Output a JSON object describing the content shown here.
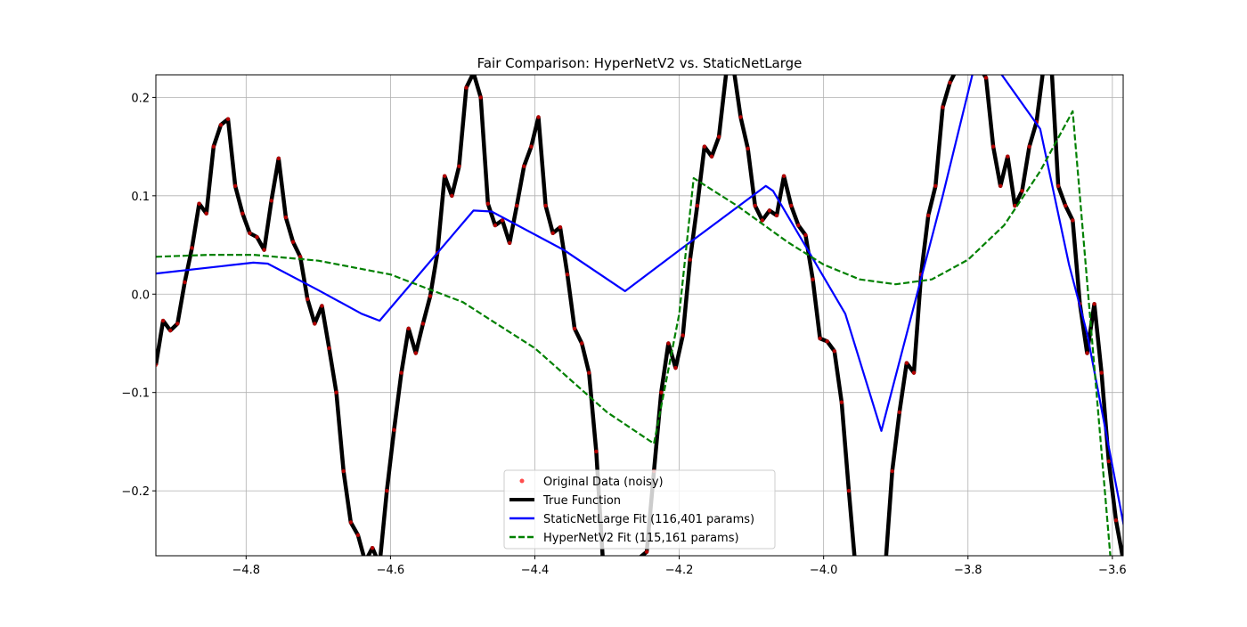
{
  "chart_data": {
    "type": "line",
    "title": "Fair Comparison: HyperNetV2 vs. StaticNetLarge",
    "xlabel": "",
    "ylabel": "",
    "xlim": [
      -4.925,
      -3.585
    ],
    "ylim": [
      -0.266,
      0.223
    ],
    "x_ticks": [
      -4.8,
      -4.6,
      -4.4,
      -4.2,
      -4.0,
      -3.8,
      -3.6
    ],
    "x_tick_labels": [
      "−4.8",
      "−4.6",
      "−4.4",
      "−4.2",
      "−4.0",
      "−3.8",
      "−3.6"
    ],
    "y_ticks": [
      0.2,
      0.1,
      0.0,
      -0.1,
      -0.2
    ],
    "y_tick_labels": [
      "0.2",
      "0.1",
      "0.0",
      "−0.1",
      "−0.2"
    ],
    "grid": true,
    "legend_position": "lower center",
    "series": [
      {
        "name": "Original Data (noisy)",
        "style": "markers",
        "color": "#ff0000",
        "x": [
          -4.925,
          -4.915,
          -4.905,
          -4.895,
          -4.885,
          -4.875,
          -4.865,
          -4.855,
          -4.845,
          -4.835,
          -4.825,
          -4.815,
          -4.805,
          -4.795,
          -4.785,
          -4.775,
          -4.765,
          -4.755,
          -4.745,
          -4.735,
          -4.725,
          -4.715,
          -4.705,
          -4.695,
          -4.685,
          -4.675,
          -4.665,
          -4.655,
          -4.645,
          -4.635,
          -4.625,
          -4.615,
          -4.605,
          -4.595,
          -4.585,
          -4.575,
          -4.565,
          -4.555,
          -4.545,
          -4.535,
          -4.525,
          -4.515,
          -4.505,
          -4.495,
          -4.485,
          -4.475,
          -4.465,
          -4.455,
          -4.445,
          -4.435,
          -4.425,
          -4.415,
          -4.405,
          -4.395,
          -4.385,
          -4.375,
          -4.365,
          -4.355,
          -4.345,
          -4.335,
          -4.325,
          -4.315,
          -4.305,
          -4.295,
          -4.285,
          -4.275,
          -4.265,
          -4.255,
          -4.245,
          -4.235,
          -4.225,
          -4.215,
          -4.205,
          -4.195,
          -4.185,
          -4.175,
          -4.165,
          -4.155,
          -4.145,
          -4.135,
          -4.125,
          -4.115,
          -4.105,
          -4.095,
          -4.085,
          -4.075,
          -4.065,
          -4.055,
          -4.045,
          -4.035,
          -4.025,
          -4.015,
          -4.005,
          -3.995,
          -3.985,
          -3.975,
          -3.965,
          -3.955,
          -3.945,
          -3.935,
          -3.925,
          -3.915,
          -3.905,
          -3.895,
          -3.885,
          -3.875,
          -3.865,
          -3.855,
          -3.845,
          -3.835,
          -3.825,
          -3.815,
          -3.805,
          -3.795,
          -3.785,
          -3.775,
          -3.765,
          -3.755,
          -3.745,
          -3.735,
          -3.725,
          -3.715,
          -3.705,
          -3.695,
          -3.685,
          -3.675,
          -3.665,
          -3.655,
          -3.645,
          -3.635,
          -3.625,
          -3.615,
          -3.605,
          -3.595,
          -3.585
        ],
        "y": [
          -0.072,
          -0.027,
          -0.037,
          -0.03,
          0.012,
          0.047,
          0.092,
          0.082,
          0.15,
          0.172,
          0.178,
          0.11,
          0.082,
          0.062,
          0.058,
          0.045,
          0.095,
          0.138,
          0.078,
          0.053,
          0.038,
          -0.005,
          -0.03,
          -0.012,
          -0.055,
          -0.1,
          -0.18,
          -0.232,
          -0.245,
          -0.272,
          -0.258,
          -0.275,
          -0.2,
          -0.138,
          -0.08,
          -0.035,
          -0.06,
          -0.03,
          -0.002,
          0.042,
          0.12,
          0.1,
          0.13,
          0.21,
          0.225,
          0.2,
          0.092,
          0.07,
          0.075,
          0.052,
          0.09,
          0.13,
          0.15,
          0.18,
          0.09,
          0.062,
          0.068,
          0.02,
          -0.035,
          -0.05,
          -0.08,
          -0.16,
          -0.28,
          -0.27,
          -0.282,
          -0.272,
          -0.275,
          -0.268,
          -0.262,
          -0.18,
          -0.1,
          -0.05,
          -0.075,
          -0.042,
          0.035,
          0.09,
          0.15,
          0.14,
          0.16,
          0.225,
          0.231,
          0.18,
          0.148,
          0.09,
          0.075,
          0.085,
          0.08,
          0.12,
          0.09,
          0.07,
          0.06,
          0.015,
          -0.045,
          -0.048,
          -0.058,
          -0.11,
          -0.2,
          -0.285,
          -0.28,
          -0.283,
          -0.284,
          -0.282,
          -0.18,
          -0.12,
          -0.07,
          -0.08,
          0.02,
          0.08,
          0.11,
          0.19,
          0.215,
          0.23,
          0.24,
          0.235,
          0.232,
          0.22,
          0.15,
          0.11,
          0.14,
          0.09,
          0.105,
          0.15,
          0.175,
          0.233,
          0.24,
          0.11,
          0.09,
          0.075,
          -0.01,
          -0.06,
          -0.01,
          -0.08,
          -0.17,
          -0.23,
          -0.27
        ]
      },
      {
        "name": "True Function",
        "style": "line",
        "color": "#000000",
        "x": [
          -4.925,
          -4.915,
          -4.905,
          -4.895,
          -4.885,
          -4.875,
          -4.865,
          -4.855,
          -4.845,
          -4.835,
          -4.825,
          -4.815,
          -4.805,
          -4.795,
          -4.785,
          -4.775,
          -4.765,
          -4.755,
          -4.745,
          -4.735,
          -4.725,
          -4.715,
          -4.705,
          -4.695,
          -4.685,
          -4.675,
          -4.665,
          -4.655,
          -4.645,
          -4.635,
          -4.625,
          -4.615,
          -4.605,
          -4.595,
          -4.585,
          -4.575,
          -4.565,
          -4.555,
          -4.545,
          -4.535,
          -4.525,
          -4.515,
          -4.505,
          -4.495,
          -4.485,
          -4.475,
          -4.465,
          -4.455,
          -4.445,
          -4.435,
          -4.425,
          -4.415,
          -4.405,
          -4.395,
          -4.385,
          -4.375,
          -4.365,
          -4.355,
          -4.345,
          -4.335,
          -4.325,
          -4.315,
          -4.305,
          -4.295,
          -4.285,
          -4.275,
          -4.265,
          -4.255,
          -4.245,
          -4.235,
          -4.225,
          -4.215,
          -4.205,
          -4.195,
          -4.185,
          -4.175,
          -4.165,
          -4.155,
          -4.145,
          -4.135,
          -4.125,
          -4.115,
          -4.105,
          -4.095,
          -4.085,
          -4.075,
          -4.065,
          -4.055,
          -4.045,
          -4.035,
          -4.025,
          -4.015,
          -4.005,
          -3.995,
          -3.985,
          -3.975,
          -3.965,
          -3.955,
          -3.945,
          -3.935,
          -3.925,
          -3.915,
          -3.905,
          -3.895,
          -3.885,
          -3.875,
          -3.865,
          -3.855,
          -3.845,
          -3.835,
          -3.825,
          -3.815,
          -3.805,
          -3.795,
          -3.785,
          -3.775,
          -3.765,
          -3.755,
          -3.745,
          -3.735,
          -3.725,
          -3.715,
          -3.705,
          -3.695,
          -3.685,
          -3.675,
          -3.665,
          -3.655,
          -3.645,
          -3.635,
          -3.625,
          -3.615,
          -3.605,
          -3.595,
          -3.585
        ],
        "y": [
          -0.072,
          -0.027,
          -0.037,
          -0.03,
          0.012,
          0.047,
          0.092,
          0.082,
          0.15,
          0.172,
          0.178,
          0.11,
          0.082,
          0.062,
          0.058,
          0.045,
          0.095,
          0.138,
          0.078,
          0.053,
          0.038,
          -0.005,
          -0.03,
          -0.012,
          -0.055,
          -0.1,
          -0.18,
          -0.232,
          -0.245,
          -0.272,
          -0.258,
          -0.275,
          -0.2,
          -0.138,
          -0.08,
          -0.035,
          -0.06,
          -0.03,
          -0.002,
          0.042,
          0.12,
          0.1,
          0.13,
          0.21,
          0.225,
          0.2,
          0.092,
          0.07,
          0.075,
          0.052,
          0.09,
          0.13,
          0.15,
          0.18,
          0.09,
          0.062,
          0.068,
          0.02,
          -0.035,
          -0.05,
          -0.08,
          -0.16,
          -0.28,
          -0.27,
          -0.282,
          -0.272,
          -0.275,
          -0.268,
          -0.262,
          -0.18,
          -0.1,
          -0.05,
          -0.075,
          -0.042,
          0.035,
          0.09,
          0.15,
          0.14,
          0.16,
          0.225,
          0.231,
          0.18,
          0.148,
          0.09,
          0.075,
          0.085,
          0.08,
          0.12,
          0.09,
          0.07,
          0.06,
          0.015,
          -0.045,
          -0.048,
          -0.058,
          -0.11,
          -0.2,
          -0.285,
          -0.28,
          -0.283,
          -0.284,
          -0.282,
          -0.18,
          -0.12,
          -0.07,
          -0.08,
          0.02,
          0.08,
          0.11,
          0.19,
          0.215,
          0.23,
          0.24,
          0.235,
          0.232,
          0.22,
          0.15,
          0.11,
          0.14,
          0.09,
          0.105,
          0.15,
          0.175,
          0.233,
          0.24,
          0.11,
          0.09,
          0.075,
          -0.01,
          -0.06,
          -0.01,
          -0.08,
          -0.17,
          -0.23,
          -0.27
        ]
      },
      {
        "name": "StaticNetLarge Fit (116,401 params)",
        "style": "line",
        "color": "#0000ff",
        "x": [
          -4.925,
          -4.79,
          -4.77,
          -4.7,
          -4.64,
          -4.615,
          -4.485,
          -4.46,
          -4.36,
          -4.275,
          -4.19,
          -4.08,
          -4.07,
          -3.97,
          -3.92,
          -3.835,
          -3.79,
          -3.76,
          -3.7,
          -3.66,
          -3.635,
          -3.57
        ],
        "y": [
          0.021,
          0.032,
          0.031,
          0.004,
          -0.02,
          -0.027,
          0.085,
          0.084,
          0.045,
          0.003,
          0.05,
          0.11,
          0.105,
          -0.02,
          -0.139,
          0.1,
          0.235,
          0.23,
          0.168,
          0.03,
          -0.04,
          -0.29
        ]
      },
      {
        "name": "HyperNetV2 Fit (115,161 params)",
        "style": "dashed",
        "color": "#008000",
        "x": [
          -4.925,
          -4.85,
          -4.79,
          -4.7,
          -4.6,
          -4.5,
          -4.4,
          -4.3,
          -4.235,
          -4.2,
          -4.18,
          -4.12,
          -4.05,
          -4.0,
          -3.95,
          -3.9,
          -3.85,
          -3.8,
          -3.75,
          -3.7,
          -3.655,
          -3.63,
          -3.6
        ],
        "y": [
          0.038,
          0.04,
          0.04,
          0.034,
          0.02,
          -0.008,
          -0.055,
          -0.12,
          -0.152,
          -0.02,
          0.118,
          0.09,
          0.053,
          0.03,
          0.015,
          0.01,
          0.015,
          0.035,
          0.07,
          0.125,
          0.186,
          -0.03,
          -0.29
        ]
      }
    ]
  }
}
